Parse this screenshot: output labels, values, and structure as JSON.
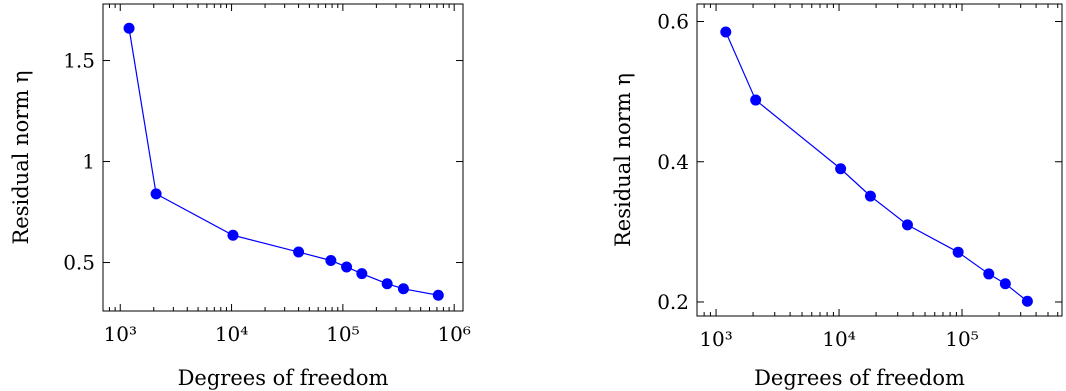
{
  "chart_data": [
    {
      "type": "line",
      "title": "",
      "xlabel": "Degrees of freedom",
      "ylabel": "Residual norm η",
      "xscale": "log",
      "xlim": [
        700,
        1200000
      ],
      "ylim": [
        0.26,
        1.78
      ],
      "grid": false,
      "xticks": [
        {
          "value": 1000,
          "label": "10³"
        },
        {
          "value": 10000,
          "label": "10⁴"
        },
        {
          "value": 100000,
          "label": "10⁵"
        },
        {
          "value": 1000000,
          "label": "10⁶"
        }
      ],
      "yticks": [
        {
          "value": 0.5,
          "label": "0.5"
        },
        {
          "value": 1,
          "label": "1"
        },
        {
          "value": 1.5,
          "label": "1.5"
        }
      ],
      "series": [
        {
          "color": "#0000ff",
          "x": [
            1200,
            2100,
            10300,
            40000,
            78000,
            108000,
            148000,
            250000,
            350000,
            720000
          ],
          "y": [
            1.66,
            0.84,
            0.635,
            0.552,
            0.51,
            0.478,
            0.445,
            0.395,
            0.37,
            0.338
          ]
        }
      ]
    },
    {
      "type": "line",
      "title": "",
      "xlabel": "Degrees of freedom",
      "ylabel": "Residual norm η",
      "xscale": "log",
      "xlim": [
        700,
        650000
      ],
      "ylim": [
        0.18,
        0.625
      ],
      "grid": false,
      "xticks": [
        {
          "value": 1000,
          "label": "10³"
        },
        {
          "value": 10000,
          "label": "10⁴"
        },
        {
          "value": 100000,
          "label": "10⁵"
        }
      ],
      "yticks": [
        {
          "value": 0.2,
          "label": "0.2"
        },
        {
          "value": 0.4,
          "label": "0.4"
        },
        {
          "value": 0.6,
          "label": "0.6"
        }
      ],
      "series": [
        {
          "color": "#0000ff",
          "x": [
            1200,
            2100,
            10300,
            18000,
            36000,
            93000,
            165000,
            225000,
            340000
          ],
          "y": [
            0.585,
            0.488,
            0.39,
            0.351,
            0.31,
            0.271,
            0.24,
            0.226,
            0.201
          ]
        }
      ]
    }
  ]
}
